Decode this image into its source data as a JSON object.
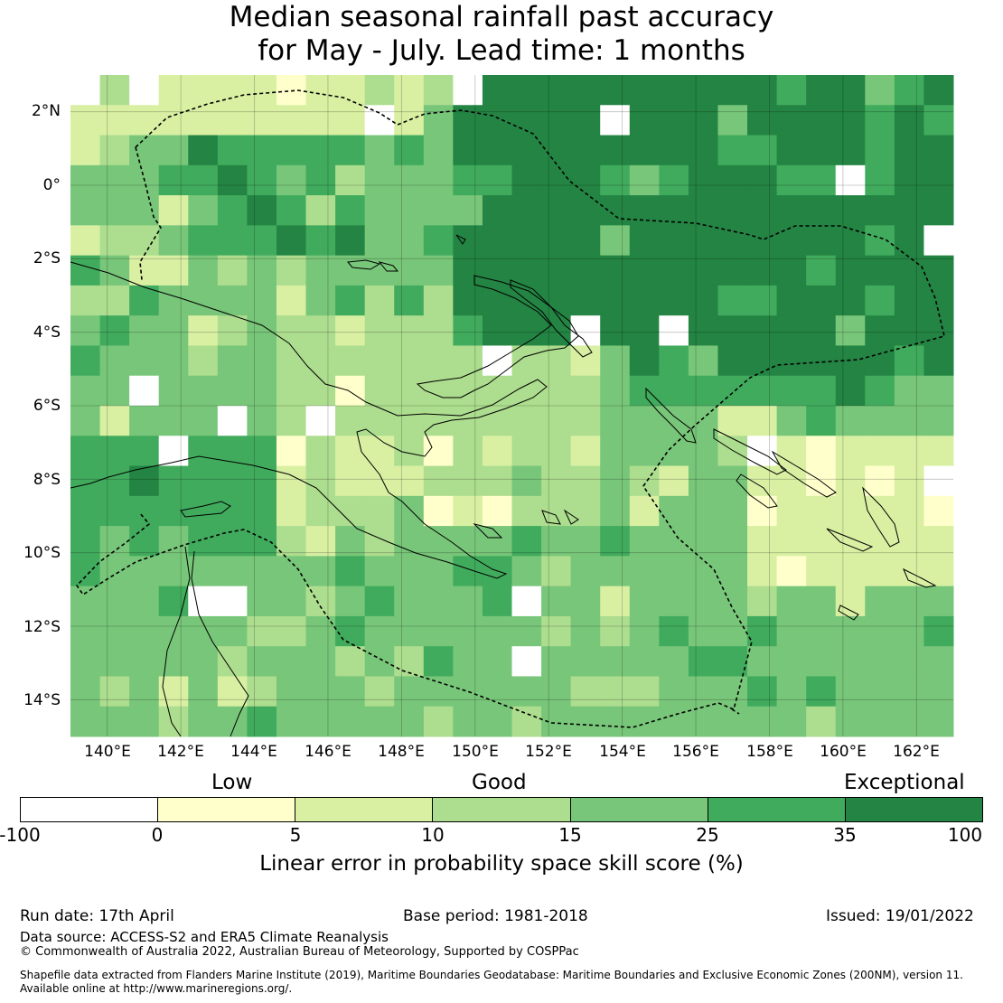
{
  "title": {
    "line1": "Median seasonal rainfall past accuracy",
    "line2": "for May - July. Lead time: 1 months"
  },
  "map": {
    "lat_labels": [
      "2°N",
      "0°",
      "2°S",
      "4°S",
      "6°S",
      "8°S",
      "10°S",
      "12°S",
      "14°S"
    ],
    "lon_labels": [
      "140°E",
      "142°E",
      "144°E",
      "146°E",
      "148°E",
      "150°E",
      "152°E",
      "154°E",
      "156°E",
      "158°E",
      "160°E",
      "162°E"
    ],
    "lat_range": [
      -15,
      3
    ],
    "lon_range": [
      139,
      163
    ],
    "grid_lines": true,
    "palette": [
      "#ffffff",
      "#ffffcc",
      "#d9f0a3",
      "#addd8e",
      "#78c679",
      "#41ab5d",
      "#238443"
    ]
  },
  "colorbar": {
    "category_labels": [
      "Low",
      "Good",
      "Exceptional"
    ],
    "ticks": [
      "-100",
      "0",
      "5",
      "10",
      "15",
      "25",
      "35",
      "100"
    ],
    "colors": [
      "#ffffff",
      "#ffffcc",
      "#d9f0a3",
      "#addd8e",
      "#78c679",
      "#41ab5d",
      "#238443"
    ],
    "label": "Linear error in probability space skill score (%)"
  },
  "footer": {
    "run_date": "Run date: 17th April",
    "base_period": "Base period: 1981-2018",
    "issued": "Issued: 19/01/2022",
    "data_source": "Data source: ACCESS-S2 and ERA5 Climate Reanalysis",
    "copyright": "© Commonwealth of Australia 2022, Australian Bureau of Meteorology, Supported by COSPPac",
    "shapefile_line1": "Shapefile data extracted from Flanders Marine Institute (2019), Maritime Boundaries Geodatabase: Maritime Boundaries and Exclusive Economic Zones (200NM), version 11.",
    "shapefile_line2": "Available online at http://www.marineregions.org/."
  }
}
